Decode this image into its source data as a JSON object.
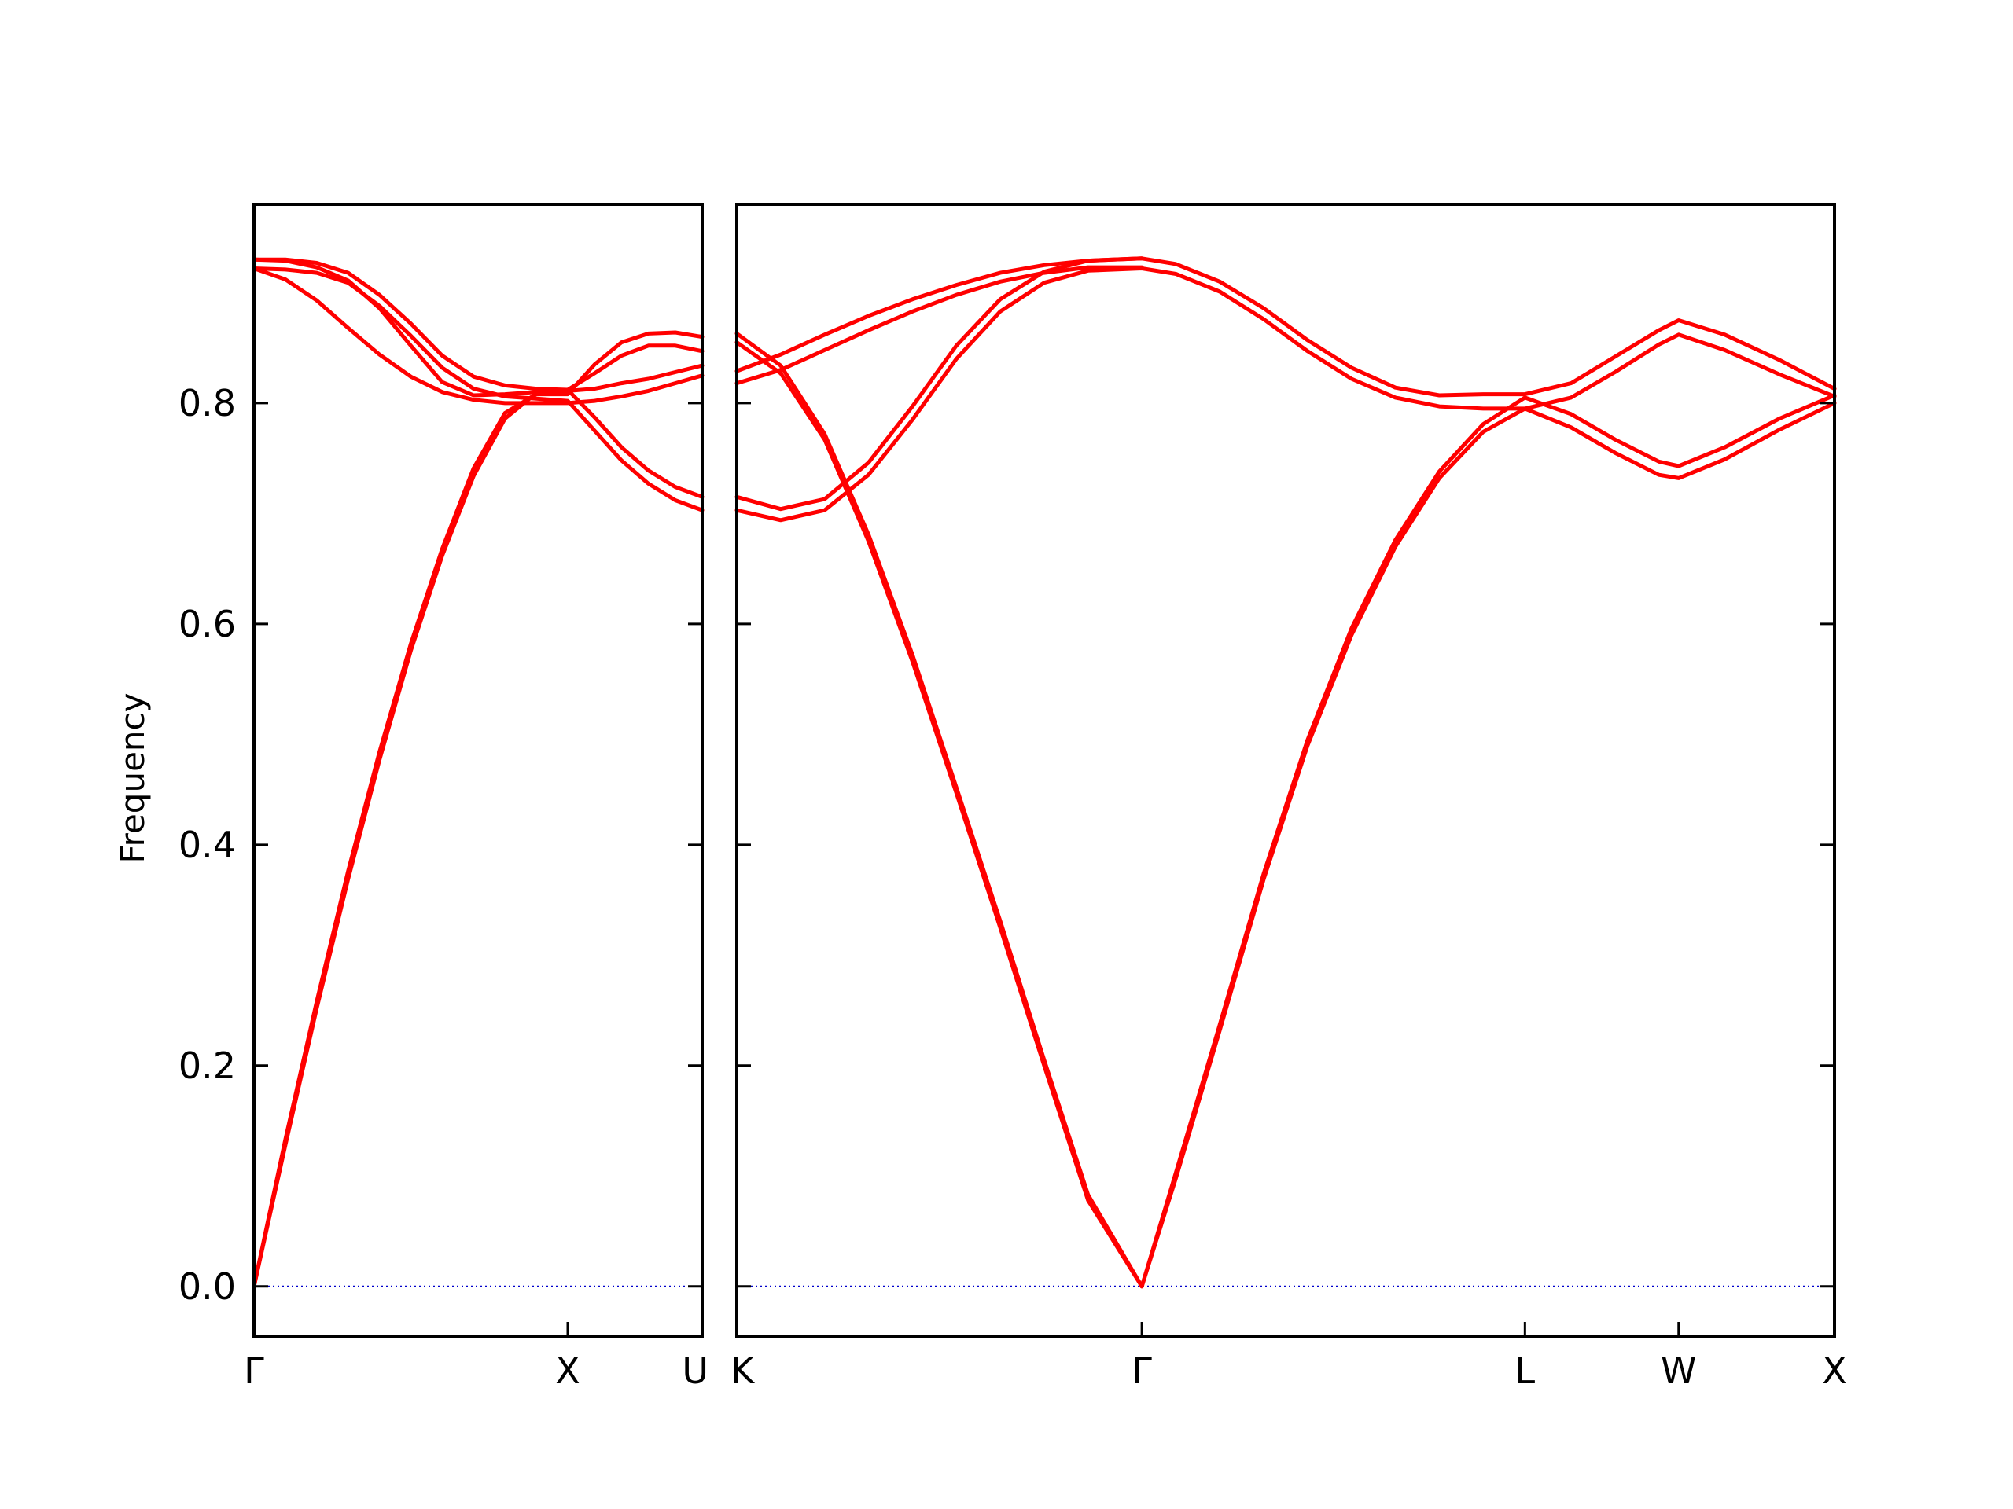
{
  "chart_data": {
    "type": "line",
    "ylabel": "Frequency",
    "ylim": [
      -0.045,
      0.98
    ],
    "yticks": [
      0.0,
      0.2,
      0.4,
      0.6,
      0.8
    ],
    "ytick_labels": [
      "0.0",
      "0.2",
      "0.4",
      "0.6",
      "0.8"
    ],
    "grid": false,
    "line_color": "#ff0000",
    "zero_line_color": "#0000cc",
    "panels": [
      {
        "xlim": [
          0,
          1
        ],
        "ticks": [
          {
            "x": 0.0,
            "label": "Γ"
          },
          {
            "x": 0.7,
            "label": "X"
          },
          {
            "x": 1.0,
            "label": "U"
          }
        ],
        "series": [
          {
            "x": [
              0,
              0.07,
              0.14,
              0.21,
              0.28,
              0.35,
              0.42,
              0.49,
              0.56,
              0.63,
              0.7,
              0.76,
              0.82,
              0.88,
              0.94,
              1.0
            ],
            "y": [
              0.0,
              0.128,
              0.252,
              0.369,
              0.477,
              0.576,
              0.662,
              0.734,
              0.786,
              0.809,
              0.812,
              0.827,
              0.843,
              0.852,
              0.852,
              0.847
            ]
          },
          {
            "x": [
              0,
              0.07,
              0.14,
              0.21,
              0.28,
              0.35,
              0.42,
              0.49,
              0.56,
              0.63,
              0.7,
              0.76,
              0.82,
              0.88,
              0.94,
              1.0
            ],
            "y": [
              0.0,
              0.133,
              0.258,
              0.376,
              0.484,
              0.582,
              0.668,
              0.741,
              0.791,
              0.808,
              0.808,
              0.835,
              0.855,
              0.863,
              0.864,
              0.86
            ]
          },
          {
            "x": [
              0,
              0.07,
              0.14,
              0.21,
              0.28,
              0.35,
              0.42,
              0.49,
              0.56,
              0.63,
              0.7,
              0.76,
              0.82,
              0.88,
              0.94,
              1.0
            ],
            "y": [
              0.922,
              0.921,
              0.918,
              0.909,
              0.888,
              0.861,
              0.832,
              0.813,
              0.806,
              0.804,
              0.802,
              0.775,
              0.748,
              0.727,
              0.712,
              0.703
            ]
          },
          {
            "x": [
              0,
              0.07,
              0.14,
              0.21,
              0.28,
              0.35,
              0.42,
              0.49,
              0.56,
              0.63,
              0.7,
              0.76,
              0.82,
              0.88,
              0.94,
              1.0
            ],
            "y": [
              0.93,
              0.93,
              0.927,
              0.918,
              0.898,
              0.872,
              0.843,
              0.824,
              0.816,
              0.813,
              0.812,
              0.787,
              0.76,
              0.739,
              0.724,
              0.715
            ]
          },
          {
            "x": [
              0,
              0.07,
              0.14,
              0.21,
              0.28,
              0.35,
              0.42,
              0.49,
              0.56,
              0.63,
              0.7,
              0.76,
              0.82,
              0.88,
              0.94,
              1.0
            ],
            "y": [
              0.922,
              0.912,
              0.893,
              0.868,
              0.844,
              0.824,
              0.81,
              0.803,
              0.8,
              0.8,
              0.8,
              0.802,
              0.806,
              0.811,
              0.818,
              0.825
            ]
          },
          {
            "x": [
              0,
              0.07,
              0.14,
              0.21,
              0.28,
              0.35,
              0.42,
              0.49,
              0.56,
              0.63,
              0.7,
              0.76,
              0.82,
              0.88,
              0.94,
              1.0
            ],
            "y": [
              0.93,
              0.929,
              0.923,
              0.911,
              0.886,
              0.852,
              0.819,
              0.807,
              0.808,
              0.81,
              0.811,
              0.813,
              0.818,
              0.822,
              0.828,
              0.834
            ]
          }
        ]
      },
      {
        "xlim": [
          0,
          1
        ],
        "ticks": [
          {
            "x": 0.0,
            "label": "K"
          },
          {
            "x": 0.369,
            "label": "Γ"
          },
          {
            "x": 0.718,
            "label": "L"
          },
          {
            "x": 0.858,
            "label": "W"
          },
          {
            "x": 1.0,
            "label": "X"
          }
        ],
        "series": [
          {
            "x": [
              0,
              0.04,
              0.08,
              0.12,
              0.16,
              0.2,
              0.24,
              0.28,
              0.32,
              0.369,
              0.4,
              0.44,
              0.48,
              0.52,
              0.56,
              0.6,
              0.64,
              0.68,
              0.718,
              0.76,
              0.8,
              0.84,
              0.858,
              0.9,
              0.95,
              1.0
            ],
            "y": [
              0.855,
              0.827,
              0.767,
              0.675,
              0.566,
              0.447,
              0.325,
              0.2,
              0.078,
              0.0,
              0.098,
              0.232,
              0.369,
              0.49,
              0.59,
              0.67,
              0.732,
              0.774,
              0.795,
              0.778,
              0.755,
              0.735,
              0.732,
              0.749,
              0.776,
              0.8
            ]
          },
          {
            "x": [
              0,
              0.04,
              0.08,
              0.12,
              0.16,
              0.2,
              0.24,
              0.28,
              0.32,
              0.369,
              0.4,
              0.44,
              0.48,
              0.52,
              0.56,
              0.6,
              0.64,
              0.68,
              0.718,
              0.76,
              0.8,
              0.84,
              0.858,
              0.9,
              0.95,
              1.0
            ],
            "y": [
              0.863,
              0.834,
              0.772,
              0.681,
              0.572,
              0.452,
              0.331,
              0.205,
              0.083,
              0.0,
              0.103,
              0.237,
              0.374,
              0.495,
              0.596,
              0.676,
              0.738,
              0.781,
              0.805,
              0.79,
              0.767,
              0.747,
              0.743,
              0.76,
              0.786,
              0.807
            ]
          },
          {
            "x": [
              0,
              0.04,
              0.08,
              0.12,
              0.16,
              0.2,
              0.24,
              0.28,
              0.32,
              0.369,
              0.4,
              0.44,
              0.48,
              0.52,
              0.56,
              0.6,
              0.64,
              0.68,
              0.718,
              0.76,
              0.8,
              0.84,
              0.858,
              0.9,
              0.95,
              1.0
            ],
            "y": [
              0.703,
              0.694,
              0.703,
              0.735,
              0.785,
              0.84,
              0.883,
              0.909,
              0.92,
              0.922,
              0.917,
              0.901,
              0.876,
              0.847,
              0.822,
              0.805,
              0.797,
              0.795,
              0.795,
              0.805,
              0.828,
              0.853,
              0.862,
              0.848,
              0.826,
              0.806
            ]
          },
          {
            "x": [
              0,
              0.04,
              0.08,
              0.12,
              0.16,
              0.2,
              0.24,
              0.28,
              0.32,
              0.369,
              0.4,
              0.44,
              0.48,
              0.52,
              0.56,
              0.6,
              0.64,
              0.68,
              0.718,
              0.76,
              0.8,
              0.84,
              0.858,
              0.9,
              0.95,
              1.0
            ],
            "y": [
              0.715,
              0.704,
              0.713,
              0.746,
              0.797,
              0.852,
              0.894,
              0.919,
              0.929,
              0.931,
              0.926,
              0.91,
              0.886,
              0.857,
              0.832,
              0.814,
              0.807,
              0.808,
              0.808,
              0.818,
              0.842,
              0.866,
              0.875,
              0.862,
              0.839,
              0.813
            ]
          },
          {
            "x": [
              0,
              0.04,
              0.08,
              0.12,
              0.16,
              0.2,
              0.24,
              0.28,
              0.32,
              0.369
            ],
            "y": [
              0.818,
              0.83,
              0.848,
              0.866,
              0.883,
              0.898,
              0.91,
              0.918,
              0.923,
              0.923
            ]
          },
          {
            "x": [
              0,
              0.04,
              0.08,
              0.12,
              0.16,
              0.2,
              0.24,
              0.28,
              0.32,
              0.369
            ],
            "y": [
              0.829,
              0.844,
              0.862,
              0.879,
              0.894,
              0.907,
              0.918,
              0.925,
              0.929,
              0.931
            ]
          }
        ]
      }
    ]
  }
}
